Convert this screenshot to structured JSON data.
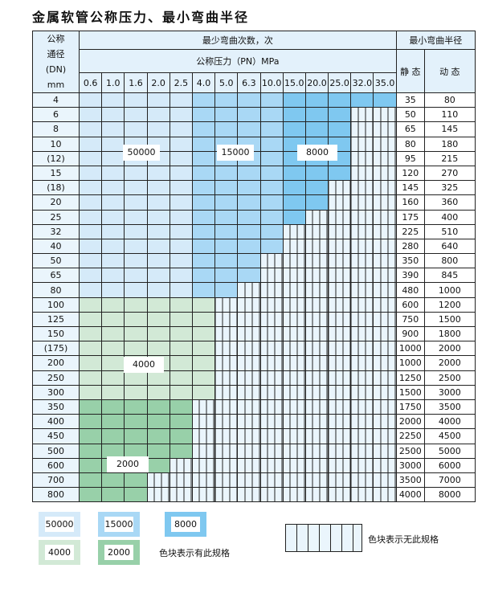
{
  "title": "金属软管公称压力、最小弯曲半径",
  "header": {
    "dn_label": [
      "公称",
      "通径",
      "(DN)",
      "mm"
    ],
    "bend_count_label": "最少弯曲次数，次",
    "pressure_label": "公称压力（PN）MPa",
    "min_radius_label": "最小弯曲半径",
    "static_label": "静 态",
    "dynamic_label": "动 态",
    "pressures": [
      "0.6",
      "1.0",
      "1.6",
      "2.0",
      "2.5",
      "4.0",
      "5.0",
      "6.3",
      "10.0",
      "15.0",
      "20.0",
      "25.0",
      "32.0",
      "35.0"
    ]
  },
  "colors": {
    "A": "#d5eaf9",
    "B": "#a9d8f5",
    "C": "#7fc8f0",
    "D": "#d2e9d6",
    "E": "#98d0a9",
    "X": "hatched"
  },
  "region_labels": {
    "A": "50000",
    "B": "15000",
    "C": "8000",
    "D": "4000",
    "E": "2000"
  },
  "rows": [
    {
      "dn": "4",
      "static": "35",
      "dynamic": "80",
      "cells": "AAAAABBBBCCCCC"
    },
    {
      "dn": "6",
      "static": "50",
      "dynamic": "110",
      "cells": "AAAAABBBBCCCXX"
    },
    {
      "dn": "8",
      "static": "65",
      "dynamic": "145",
      "cells": "AAAAABBBBCCCXX"
    },
    {
      "dn": "10",
      "static": "80",
      "dynamic": "180",
      "cells": "AAAAABBBBCCCXX"
    },
    {
      "dn": "(12)",
      "static": "95",
      "dynamic": "215",
      "cells": "AAAAABBBBCCCXX"
    },
    {
      "dn": "15",
      "static": "120",
      "dynamic": "270",
      "cells": "AAAAABBBBCCCXX"
    },
    {
      "dn": "(18)",
      "static": "145",
      "dynamic": "325",
      "cells": "AAAAABBBBCCXXX"
    },
    {
      "dn": "20",
      "static": "160",
      "dynamic": "360",
      "cells": "AAAAABBBBCCXXX"
    },
    {
      "dn": "25",
      "static": "175",
      "dynamic": "400",
      "cells": "AAAAABBBBCXXXX"
    },
    {
      "dn": "32",
      "static": "225",
      "dynamic": "510",
      "cells": "AAAAABBBBXXXXX"
    },
    {
      "dn": "40",
      "static": "280",
      "dynamic": "640",
      "cells": "AAAAABBBBXXXXX"
    },
    {
      "dn": "50",
      "static": "350",
      "dynamic": "800",
      "cells": "AAAAABBBXXXXXX"
    },
    {
      "dn": "65",
      "static": "390",
      "dynamic": "845",
      "cells": "AAAAABBBXXXXXX"
    },
    {
      "dn": "80",
      "static": "480",
      "dynamic": "1000",
      "cells": "AAAAABBXXXXXXX"
    },
    {
      "dn": "100",
      "static": "600",
      "dynamic": "1200",
      "cells": "DDDDDDXXXXXXXX"
    },
    {
      "dn": "125",
      "static": "750",
      "dynamic": "1500",
      "cells": "DDDDDDXXXXXXXX"
    },
    {
      "dn": "150",
      "static": "900",
      "dynamic": "1800",
      "cells": "DDDDDDXXXXXXXX"
    },
    {
      "dn": "(175)",
      "static": "1000",
      "dynamic": "2000",
      "cells": "DDDDDDXXXXXXXX"
    },
    {
      "dn": "200",
      "static": "1000",
      "dynamic": "2000",
      "cells": "DDDDDDXXXXXXXX"
    },
    {
      "dn": "250",
      "static": "1250",
      "dynamic": "2500",
      "cells": "DDDDDDXXXXXXXX"
    },
    {
      "dn": "300",
      "static": "1500",
      "dynamic": "3000",
      "cells": "DDDDDDXXXXXXXX"
    },
    {
      "dn": "350",
      "static": "1750",
      "dynamic": "3500",
      "cells": "EEEEEXXXXXXXXX"
    },
    {
      "dn": "400",
      "static": "2000",
      "dynamic": "4000",
      "cells": "EEEEEXXXXXXXXX"
    },
    {
      "dn": "450",
      "static": "2250",
      "dynamic": "4500",
      "cells": "EEEEEXXXXXXXXX"
    },
    {
      "dn": "500",
      "static": "2500",
      "dynamic": "5000",
      "cells": "EEEEEXXXXXXXXX"
    },
    {
      "dn": "600",
      "static": "3000",
      "dynamic": "6000",
      "cells": "EEEEXXXXXXXXXX"
    },
    {
      "dn": "700",
      "static": "3500",
      "dynamic": "7000",
      "cells": "EEEXXXXXXXXXXX"
    },
    {
      "dn": "800",
      "static": "4000",
      "dynamic": "8000",
      "cells": "EEEXXXXXXXXXXX"
    }
  ],
  "legend": {
    "items": [
      "50000",
      "15000",
      "8000",
      "4000",
      "2000"
    ],
    "has_spec_text": "色块表示有此规格",
    "no_spec_text": "色块表示无此规格"
  }
}
